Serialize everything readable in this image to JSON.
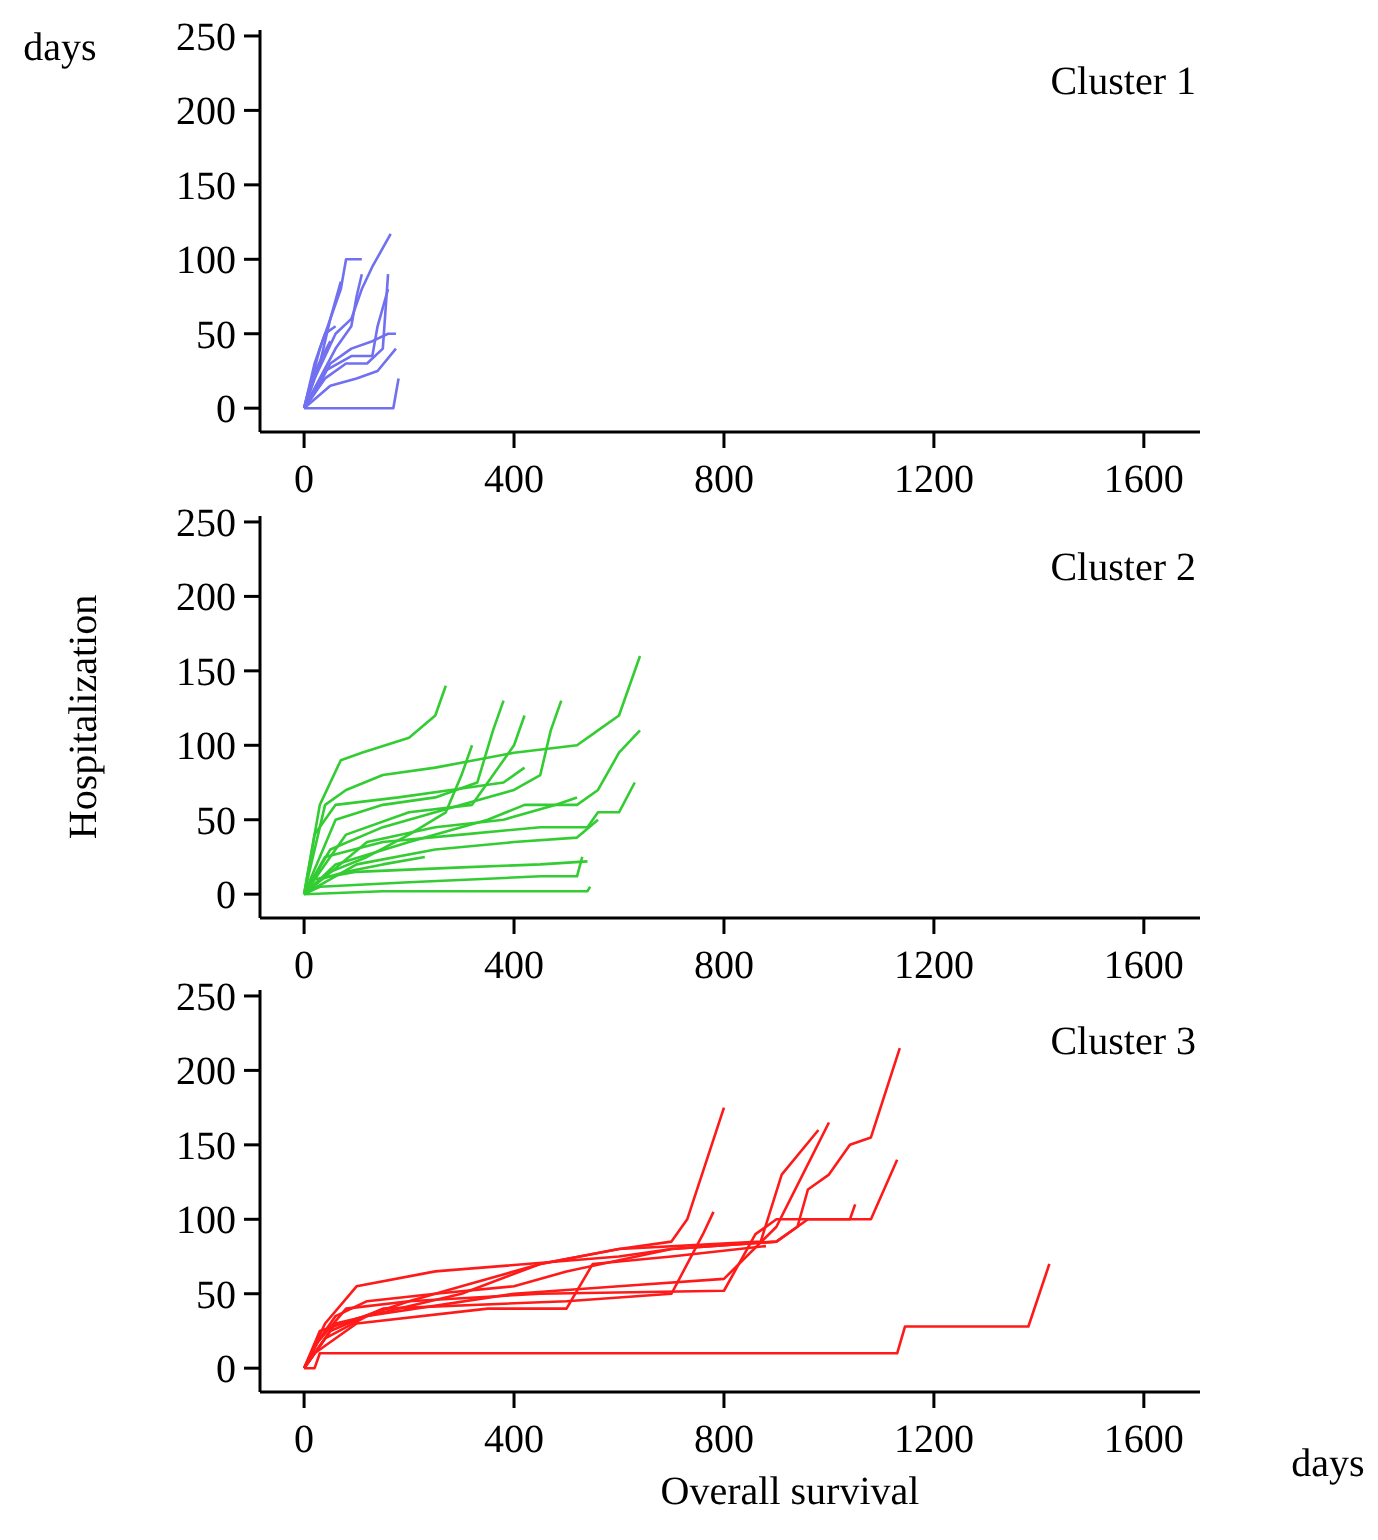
{
  "chart_data": [
    {
      "type": "line",
      "title": "Cluster 1",
      "annotations": [
        "days"
      ],
      "xlim": [
        -84,
        1707
      ],
      "xticks": [
        0,
        400,
        800,
        1200,
        1600
      ],
      "ylim": [
        -16,
        254
      ],
      "yticks": [
        0,
        50,
        100,
        150,
        200,
        250
      ],
      "grid": false,
      "series": [
        {
          "color": "#7070f0",
          "x": [
            0,
            20,
            60,
            90,
            110,
            130,
            165
          ],
          "values": [
            0,
            20,
            50,
            60,
            80,
            95,
            117
          ]
        },
        {
          "color": "#7070f0",
          "x": [
            0,
            30,
            70,
            80,
            110
          ],
          "values": [
            0,
            40,
            80,
            100,
            100
          ]
        },
        {
          "color": "#7070f0",
          "x": [
            0,
            20,
            50,
            90,
            130,
            160,
            175
          ],
          "values": [
            0,
            10,
            30,
            40,
            45,
            50,
            50
          ]
        },
        {
          "color": "#7070f0",
          "x": [
            0,
            40,
            90,
            130,
            140,
            160
          ],
          "values": [
            0,
            25,
            35,
            35,
            55,
            80
          ]
        },
        {
          "color": "#7070f0",
          "x": [
            0,
            100,
            170,
            180
          ],
          "values": [
            0,
            0,
            0,
            20
          ]
        },
        {
          "color": "#7070f0",
          "x": [
            0,
            30,
            50,
            70
          ],
          "values": [
            0,
            30,
            60,
            85
          ]
        },
        {
          "color": "#7070f0",
          "x": [
            0,
            40,
            80,
            120,
            150,
            160
          ],
          "values": [
            0,
            20,
            30,
            30,
            40,
            90
          ]
        },
        {
          "color": "#7070f0",
          "x": [
            0,
            20,
            40,
            60
          ],
          "values": [
            0,
            30,
            50,
            55
          ]
        },
        {
          "color": "#7070f0",
          "x": [
            0,
            50,
            100,
            140,
            175
          ],
          "values": [
            0,
            15,
            20,
            25,
            40
          ]
        },
        {
          "color": "#7070f0",
          "x": [
            0,
            60,
            90,
            100,
            110
          ],
          "values": [
            0,
            40,
            55,
            75,
            90
          ]
        },
        {
          "color": "#7070f0",
          "x": [
            0,
            15,
            35,
            50
          ],
          "values": [
            0,
            20,
            35,
            45
          ]
        }
      ]
    },
    {
      "type": "line",
      "title": "Cluster 2",
      "ylabel": "Hospitalization",
      "xlim": [
        -84,
        1707
      ],
      "xticks": [
        0,
        400,
        800,
        1200,
        1600
      ],
      "ylim": [
        -16,
        254
      ],
      "yticks": [
        0,
        50,
        100,
        150,
        200,
        250
      ],
      "grid": false,
      "series": [
        {
          "color": "#33cc33",
          "x": [
            0,
            40,
            80,
            150,
            250,
            400,
            520,
            560,
            600,
            640
          ],
          "values": [
            0,
            60,
            70,
            80,
            85,
            95,
            100,
            110,
            120,
            160
          ]
        },
        {
          "color": "#33cc33",
          "x": [
            0,
            30,
            70,
            110,
            200,
            250,
            270
          ],
          "values": [
            0,
            60,
            90,
            95,
            105,
            120,
            140
          ]
        },
        {
          "color": "#33cc33",
          "x": [
            0,
            50,
            150,
            300,
            400,
            450,
            470,
            490
          ],
          "values": [
            0,
            30,
            45,
            60,
            70,
            80,
            110,
            130
          ]
        },
        {
          "color": "#33cc33",
          "x": [
            0,
            60,
            200,
            350,
            420,
            520,
            560,
            600,
            640
          ],
          "values": [
            0,
            20,
            35,
            50,
            60,
            60,
            70,
            95,
            110
          ]
        },
        {
          "color": "#33cc33",
          "x": [
            0,
            20,
            100,
            300,
            450,
            540
          ],
          "values": [
            0,
            10,
            15,
            18,
            20,
            22
          ]
        },
        {
          "color": "#33cc33",
          "x": [
            0,
            150,
            540,
            545
          ],
          "values": [
            0,
            2,
            2,
            5
          ]
        },
        {
          "color": "#33cc33",
          "x": [
            0,
            30,
            200,
            450,
            520,
            530
          ],
          "values": [
            0,
            5,
            8,
            12,
            12,
            25
          ]
        },
        {
          "color": "#33cc33",
          "x": [
            0,
            40,
            150,
            300,
            450,
            540,
            560,
            600,
            630
          ],
          "values": [
            0,
            25,
            35,
            40,
            45,
            45,
            55,
            55,
            75
          ]
        },
        {
          "color": "#33cc33",
          "x": [
            0,
            80,
            200,
            320,
            400,
            420
          ],
          "values": [
            0,
            40,
            55,
            60,
            100,
            120
          ]
        },
        {
          "color": "#33cc33",
          "x": [
            0,
            60,
            150,
            250,
            330,
            360,
            380
          ],
          "values": [
            0,
            50,
            60,
            65,
            75,
            110,
            130
          ]
        },
        {
          "color": "#33cc33",
          "x": [
            0,
            100,
            250,
            400,
            520,
            560
          ],
          "values": [
            0,
            20,
            30,
            35,
            38,
            50
          ]
        },
        {
          "color": "#33cc33",
          "x": [
            0,
            50,
            120,
            200,
            270,
            300,
            320
          ],
          "values": [
            0,
            15,
            25,
            40,
            55,
            80,
            100
          ]
        },
        {
          "color": "#33cc33",
          "x": [
            0,
            20,
            60,
            180,
            280,
            380,
            420
          ],
          "values": [
            0,
            40,
            60,
            65,
            70,
            75,
            85
          ]
        },
        {
          "color": "#33cc33",
          "x": [
            0,
            30,
            80,
            150,
            230
          ],
          "values": [
            0,
            10,
            15,
            20,
            25
          ]
        },
        {
          "color": "#33cc33",
          "x": [
            0,
            120,
            250,
            380,
            480,
            520
          ],
          "values": [
            0,
            35,
            45,
            50,
            60,
            65
          ]
        }
      ]
    },
    {
      "type": "line",
      "title": "Cluster 3",
      "xlabel": "Overall survival",
      "annotations": [
        "days"
      ],
      "xlim": [
        -84,
        1707
      ],
      "xticks": [
        0,
        400,
        800,
        1200,
        1600
      ],
      "ylim": [
        -16,
        254
      ],
      "yticks": [
        0,
        50,
        100,
        150,
        200,
        250
      ],
      "grid": false,
      "series": [
        {
          "color": "#ff1a1a",
          "x": [
            0,
            20,
            30,
            1130,
            1145,
            1380,
            1420
          ],
          "values": [
            0,
            0,
            10,
            10,
            28,
            28,
            70
          ]
        },
        {
          "color": "#ff1a1a",
          "x": [
            0,
            30,
            60,
            120,
            250,
            400,
            500,
            700,
            900,
            940,
            960,
            1000,
            1040,
            1080,
            1135
          ],
          "values": [
            0,
            20,
            35,
            45,
            50,
            55,
            65,
            80,
            85,
            95,
            120,
            130,
            150,
            155,
            215
          ]
        },
        {
          "color": "#ff1a1a",
          "x": [
            0,
            20,
            80,
            200,
            300,
            450,
            600,
            700,
            730,
            800
          ],
          "values": [
            0,
            15,
            40,
            45,
            55,
            70,
            80,
            85,
            100,
            175
          ]
        },
        {
          "color": "#ff1a1a",
          "x": [
            0,
            40,
            100,
            250,
            600,
            700,
            900,
            960,
            1080,
            1130
          ],
          "values": [
            0,
            30,
            55,
            65,
            75,
            80,
            85,
            100,
            100,
            140
          ]
        },
        {
          "color": "#ff1a1a",
          "x": [
            0,
            50,
            150,
            500,
            700,
            760,
            780
          ],
          "values": [
            0,
            25,
            40,
            45,
            50,
            90,
            105
          ]
        },
        {
          "color": "#ff1a1a",
          "x": [
            0,
            40,
            120,
            400,
            600,
            800,
            900,
            950,
            1000
          ],
          "values": [
            0,
            20,
            35,
            50,
            55,
            60,
            95,
            130,
            165
          ]
        },
        {
          "color": "#ff1a1a",
          "x": [
            0,
            30,
            200,
            450,
            800,
            860,
            900,
            1040,
            1050
          ],
          "values": [
            0,
            25,
            45,
            50,
            52,
            90,
            100,
            100,
            110
          ]
        },
        {
          "color": "#ff1a1a",
          "x": [
            0,
            60,
            300,
            450,
            600,
            870,
            910,
            980
          ],
          "values": [
            0,
            30,
            50,
            70,
            80,
            85,
            130,
            160
          ]
        },
        {
          "color": "#ff1a1a",
          "x": [
            0,
            20,
            100,
            350,
            500,
            550,
            700,
            880
          ],
          "values": [
            0,
            10,
            30,
            40,
            40,
            70,
            75,
            82
          ]
        }
      ]
    }
  ]
}
